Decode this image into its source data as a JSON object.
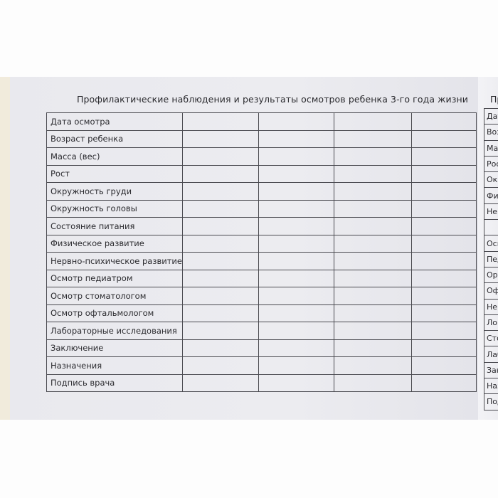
{
  "left_page": {
    "title": "Профилактические наблюдения и результаты осмотров ребенка 3-го года жизни",
    "rows": [
      "Дата осмотра",
      "Возраст ребенка",
      "Масса (вес)",
      "Рост",
      "Окружность груди",
      "Окружность головы",
      "Состояние питания",
      "Физическое развитие",
      "Нервно-психическое развитие",
      "Осмотр педиатром",
      "Осмотр стоматологом",
      "Осмотр офтальмологом",
      "Лабораторные исследования",
      "Заключение",
      "Назначения",
      "Подпись врача"
    ]
  },
  "right_page": {
    "title": "Пр",
    "rows": [
      "Дат",
      "Воз",
      "Мас",
      "Рос",
      "Окр",
      "Физ",
      "Нер",
      "",
      "Осм",
      "Пед",
      "Орт",
      "Офт",
      "Нев",
      "Лог",
      "Сто",
      "Лаб",
      "Зак",
      "Наз",
      "Под"
    ]
  }
}
